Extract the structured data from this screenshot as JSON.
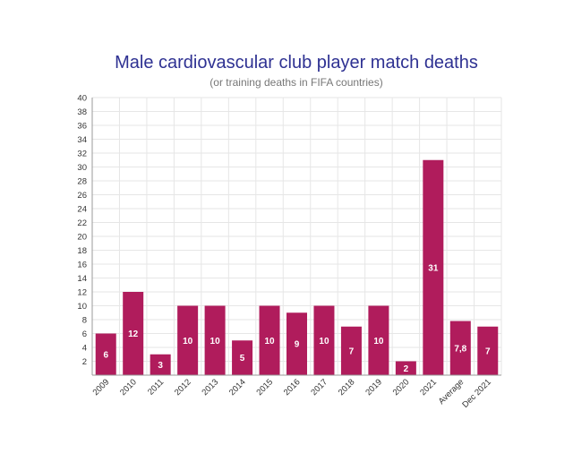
{
  "colors": {
    "bar": "#b01c5c",
    "title": "#2e3192"
  },
  "chart_data": {
    "type": "bar",
    "title": "Male cardiovascular club player match deaths",
    "subtitle": "(or training deaths in FIFA countries)",
    "xlabel": "",
    "ylabel": "",
    "categories": [
      "2009",
      "2010",
      "2011",
      "2012",
      "2013",
      "2014",
      "2015",
      "2016",
      "2017",
      "2018",
      "2019",
      "2020",
      "2021",
      "Average",
      "Dec 2021"
    ],
    "values": [
      6,
      12,
      3,
      10,
      10,
      5,
      10,
      9,
      10,
      7,
      10,
      2,
      31,
      7.8,
      7
    ],
    "data_labels": [
      "6",
      "12",
      "3",
      "10",
      "10",
      "5",
      "10",
      "9",
      "10",
      "7",
      "10",
      "2",
      "31",
      "7,8",
      "7"
    ],
    "yticks": [
      "2",
      "4",
      "6",
      "8",
      "10",
      "12",
      "14",
      "16",
      "18",
      "20",
      "22",
      "24",
      "26",
      "28",
      "30",
      "32",
      "34",
      "36",
      "38",
      "40"
    ],
    "ylim": [
      0,
      40
    ],
    "grid": true,
    "legend": "none"
  }
}
